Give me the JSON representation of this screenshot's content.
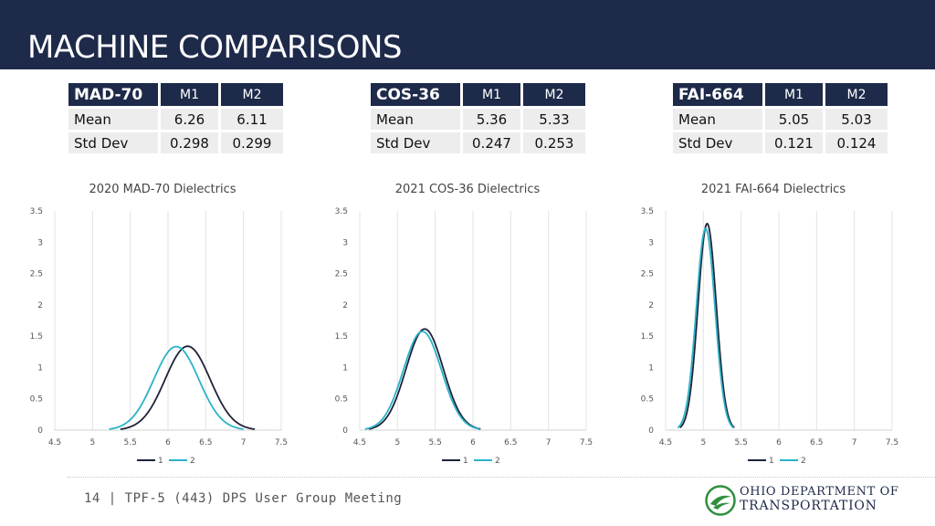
{
  "title": "MACHINE COMPARISONS",
  "tables": [
    {
      "name": "MAD-70",
      "cols": [
        "M1",
        "M2"
      ],
      "rows": [
        {
          "label": "Mean",
          "m1": "6.26",
          "m2": "6.11"
        },
        {
          "label": "Std Dev",
          "m1": "0.298",
          "m2": "0.299"
        }
      ]
    },
    {
      "name": "COS-36",
      "cols": [
        "M1",
        "M2"
      ],
      "rows": [
        {
          "label": "Mean",
          "m1": "5.36",
          "m2": "5.33"
        },
        {
          "label": "Std Dev",
          "m1": "0.247",
          "m2": "0.253"
        }
      ]
    },
    {
      "name": "FAI-664",
      "cols": [
        "M1",
        "M2"
      ],
      "rows": [
        {
          "label": "Mean",
          "m1": "5.05",
          "m2": "5.03"
        },
        {
          "label": "Std Dev",
          "m1": "0.121",
          "m2": "0.124"
        }
      ]
    }
  ],
  "chart_data": [
    {
      "type": "line",
      "title": "2020 MAD-70 Dielectrics",
      "xlim": [
        4.5,
        7.5
      ],
      "ylim": [
        0,
        3.5
      ],
      "x_ticks": [
        "4.5",
        "5",
        "5.5",
        "6",
        "6.5",
        "7",
        "7.5"
      ],
      "y_ticks": [
        "0",
        "0.5",
        "1",
        "1.5",
        "2",
        "2.5",
        "3",
        "3.5"
      ],
      "grid": "vertical",
      "legend": "bottom",
      "series": [
        {
          "name": "1",
          "color": "#1e2337",
          "mean": 6.26,
          "std": 0.298,
          "x_range": [
            5.37,
            7.15
          ]
        },
        {
          "name": "2",
          "color": "#2ab3c9",
          "mean": 6.11,
          "std": 0.299,
          "x_range": [
            5.22,
            7.0
          ]
        }
      ]
    },
    {
      "type": "line",
      "title": "2021 COS-36 Dielectrics",
      "xlim": [
        4.5,
        7.5
      ],
      "ylim": [
        0,
        3.5
      ],
      "x_ticks": [
        "4.5",
        "5",
        "5.5",
        "6",
        "6.5",
        "7",
        "7.5"
      ],
      "y_ticks": [
        "0",
        "0.5",
        "1",
        "1.5",
        "2",
        "2.5",
        "3",
        "3.5"
      ],
      "grid": "vertical",
      "legend": "bottom",
      "series": [
        {
          "name": "1",
          "color": "#1e2337",
          "mean": 5.36,
          "std": 0.247,
          "x_range": [
            4.62,
            6.1
          ]
        },
        {
          "name": "2",
          "color": "#2ab3c9",
          "mean": 5.33,
          "std": 0.253,
          "x_range": [
            4.57,
            6.09
          ]
        }
      ]
    },
    {
      "type": "line",
      "title": "2021 FAI-664 Dielectrics",
      "xlim": [
        4.5,
        7.5
      ],
      "ylim": [
        0,
        3.5
      ],
      "x_ticks": [
        "4.5",
        "5",
        "5.5",
        "6",
        "6.5",
        "7",
        "7.5"
      ],
      "y_ticks": [
        "0",
        "0.5",
        "1",
        "1.5",
        "2",
        "2.5",
        "3",
        "3.5"
      ],
      "grid": "vertical",
      "legend": "bottom",
      "series": [
        {
          "name": "1",
          "color": "#1e2337",
          "mean": 5.05,
          "std": 0.121,
          "x_range": [
            4.69,
            5.41
          ]
        },
        {
          "name": "2",
          "color": "#2ab3c9",
          "mean": 5.03,
          "std": 0.124,
          "x_range": [
            4.66,
            5.4
          ]
        }
      ]
    }
  ],
  "footer": "14 | TPF-5 (443) DPS User Group Meeting",
  "logo": {
    "line1": "OHIO DEPARTMENT OF",
    "line2": "TRANSPORTATION"
  },
  "colors": {
    "header": "#1e2a4a",
    "series1": "#1e2337",
    "series2": "#2ab3c9"
  }
}
